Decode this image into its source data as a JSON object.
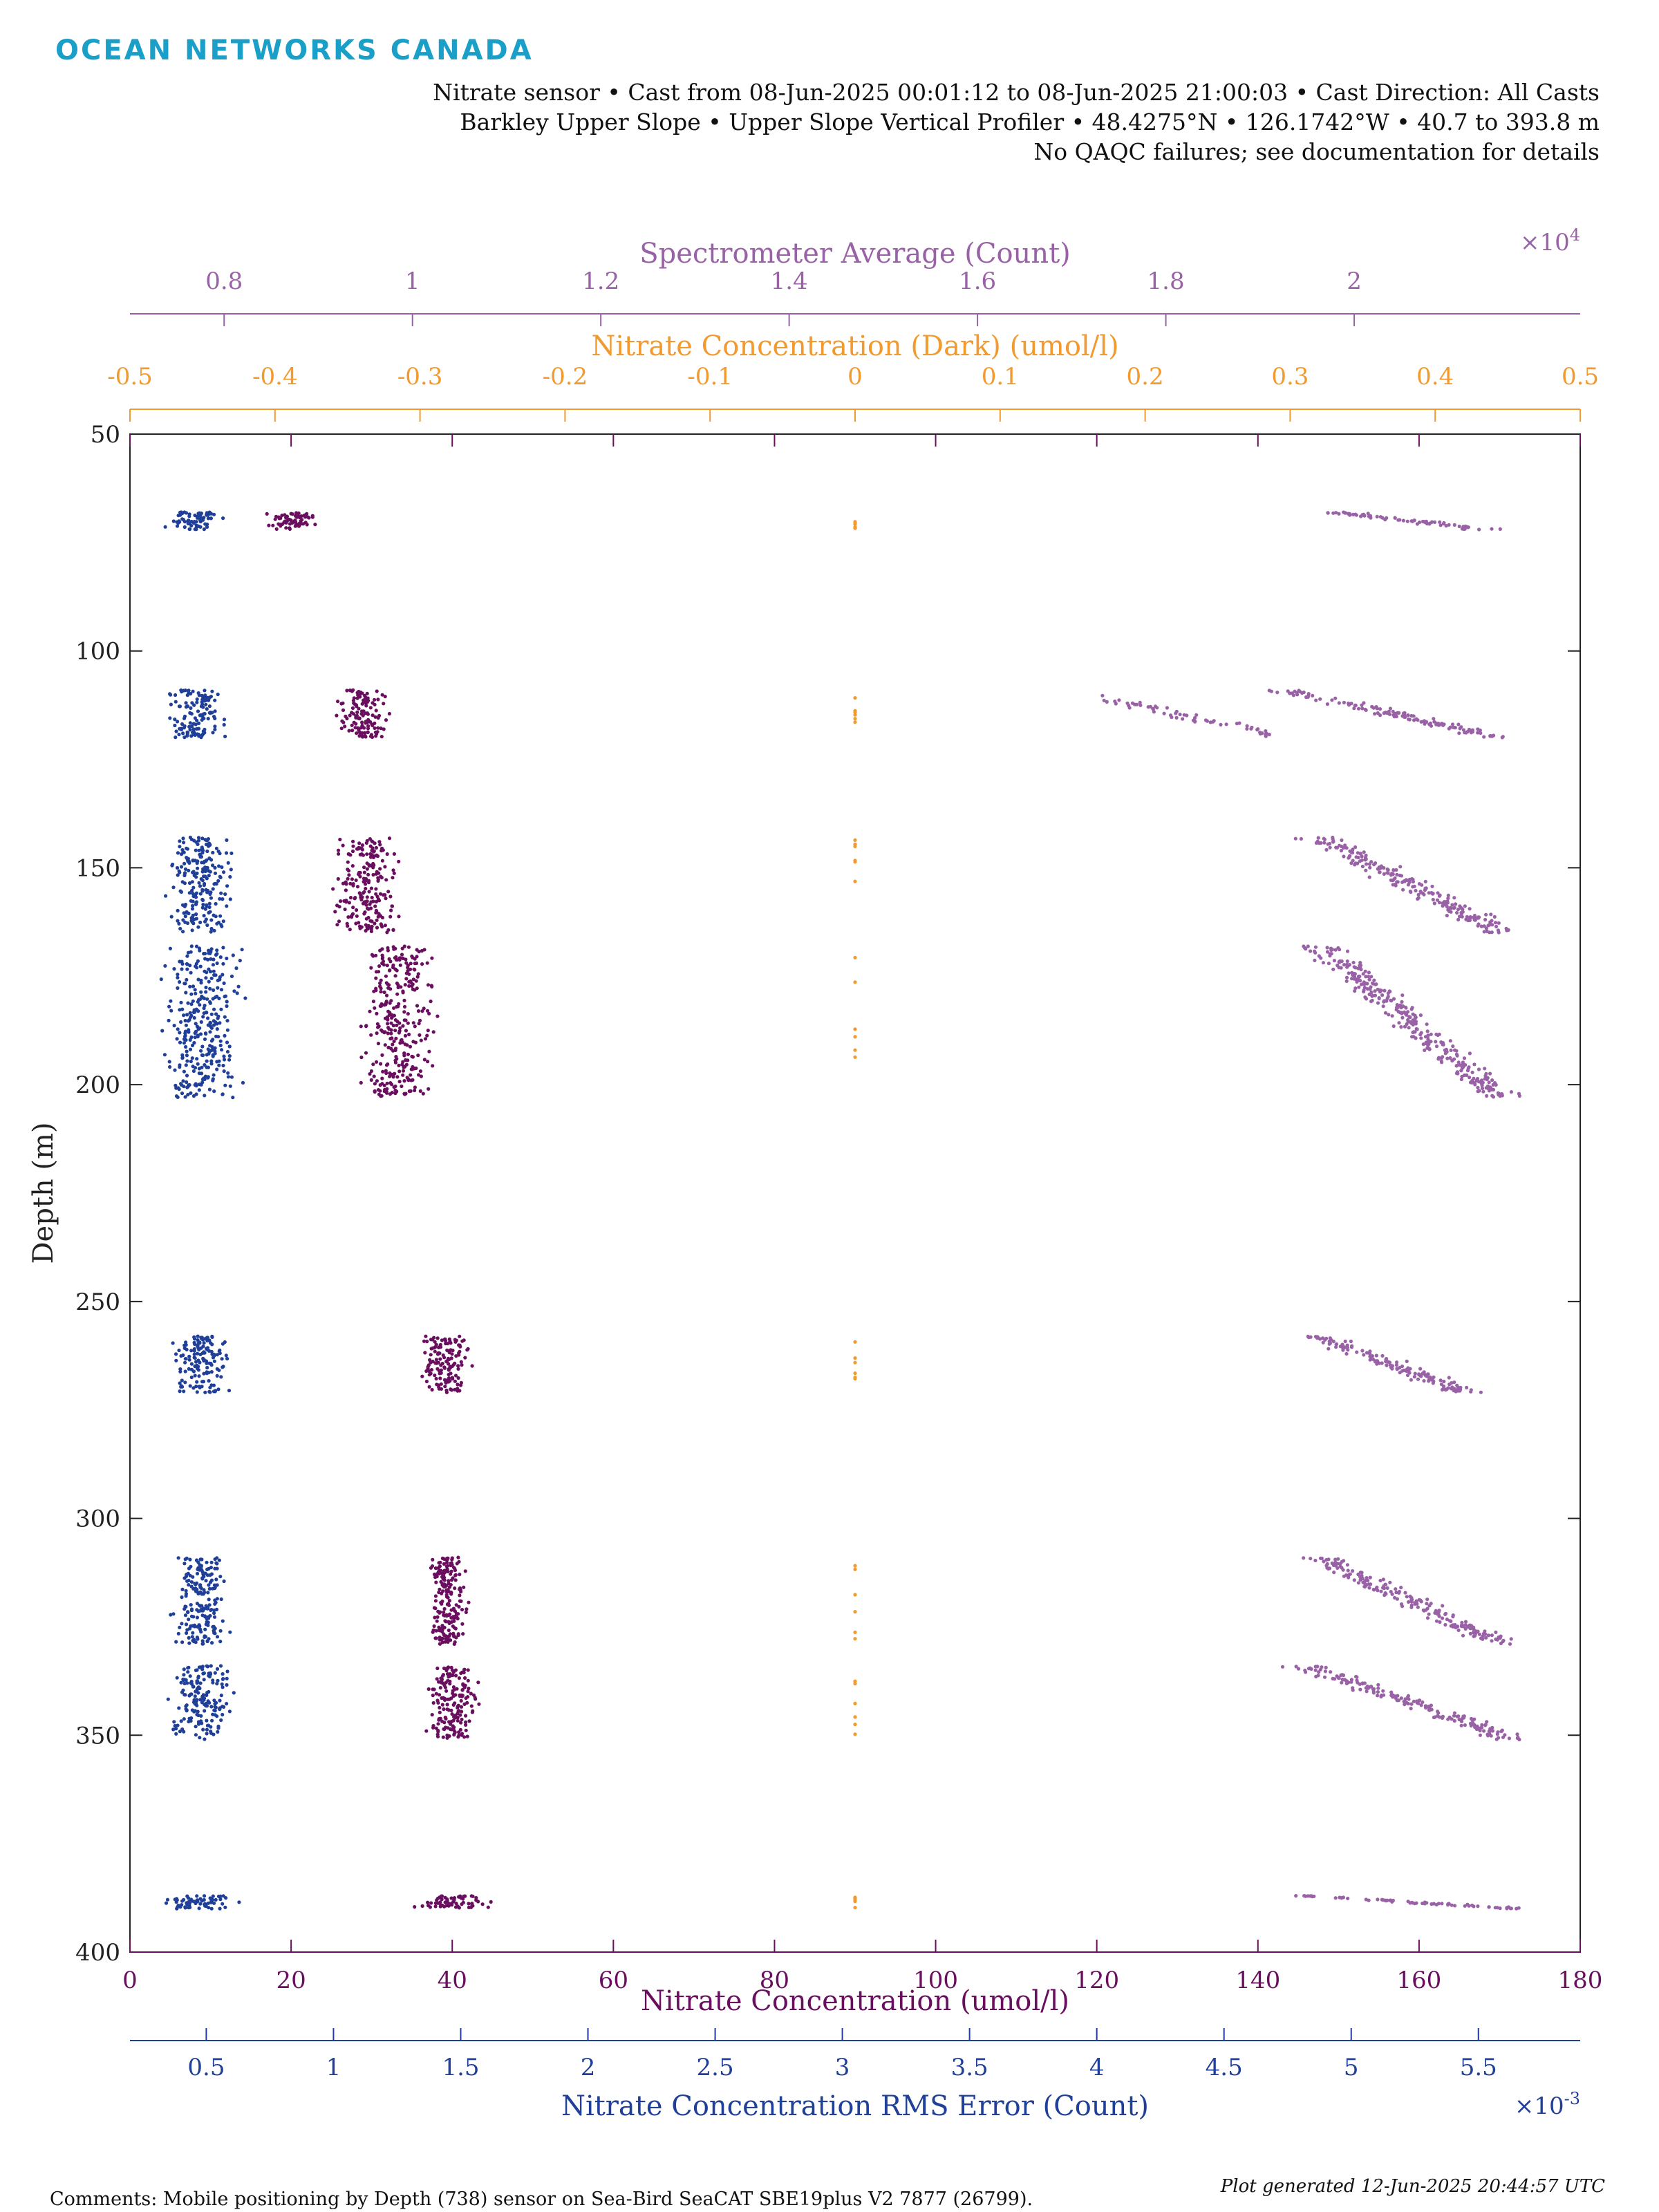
{
  "header": {
    "logo": "OCEAN NETWORKS CANADA",
    "line1": "Nitrate sensor • Cast from 08-Jun-2025 00:01:12 to 08-Jun-2025 21:00:03 • Cast Direction: All Casts",
    "line2": "Barkley Upper Slope • Upper Slope Vertical Profiler • 48.4275°N • 126.1742°W • 40.7 to 393.8 m",
    "line3": "No QAQC failures; see documentation for details"
  },
  "footer": {
    "comments": "Comments: Mobile positioning by Depth (738) sensor on Sea-Bird SeaCAT SBE19plus V2 7877 (26799).",
    "generated": "Plot generated 12-Jun-2025 20:44:57 UTC"
  },
  "colors": {
    "nitrate": "#6a0f5f",
    "rms": "#1f3f98",
    "dark": "#f29a2e",
    "spectrometer": "#9a62a6",
    "axis": "#222222"
  },
  "chart_data": {
    "type": "scatter",
    "ylabel": "Depth (m)",
    "ylim": [
      50,
      400
    ],
    "yticks": [
      50,
      100,
      150,
      200,
      250,
      300,
      350,
      400
    ],
    "y_reversed": true,
    "depth_bands": [
      [
        68,
        72
      ],
      [
        109,
        120
      ],
      [
        143,
        165
      ],
      [
        168,
        203
      ],
      [
        258,
        271
      ],
      [
        309,
        329
      ],
      [
        334,
        351
      ],
      [
        387,
        390
      ]
    ],
    "axes": [
      {
        "name": "Nitrate Concentration (umol/l)",
        "position": "bottom",
        "color": "#6a0f5f",
        "xlim": [
          0,
          180
        ],
        "ticks": [
          0,
          20,
          40,
          60,
          80,
          100,
          120,
          140,
          160,
          180
        ],
        "tick_labels": [
          "0",
          "20",
          "40",
          "60",
          "80",
          "100",
          "120",
          "140",
          "160",
          "180"
        ],
        "centers": [
          20,
          29,
          29.5,
          33,
          39,
          39.5,
          40,
          40
        ],
        "spreads": [
          4,
          4,
          5,
          6,
          4,
          3,
          4.5,
          6
        ]
      },
      {
        "name": "Nitrate Concentration RMS Error (Count)",
        "position": "bottom-secondary",
        "color": "#1f3f98",
        "scale_label": "×10",
        "scale_exp": "-3",
        "xlim": [
          0.2,
          5.9
        ],
        "ticks": [
          0.5,
          1,
          1.5,
          2,
          2.5,
          3,
          3.5,
          4,
          4.5,
          5,
          5.5
        ],
        "tick_labels": [
          "0.5",
          "1",
          "1.5",
          "2",
          "2.5",
          "3",
          "3.5",
          "4",
          "4.5",
          "5",
          "5.5"
        ],
        "centers": [
          0.46,
          0.46,
          0.48,
          0.48,
          0.48,
          0.48,
          0.48,
          0.46
        ],
        "spreads": [
          0.14,
          0.14,
          0.16,
          0.2,
          0.14,
          0.14,
          0.16,
          0.2
        ]
      },
      {
        "name": "Nitrate Concentration (Dark) (umol/l)",
        "position": "top-secondary",
        "color": "#f29a2e",
        "xlim": [
          -0.5,
          0.5
        ],
        "ticks": [
          -0.5,
          -0.4,
          -0.3,
          -0.2,
          -0.1,
          0,
          0.1,
          0.2,
          0.3,
          0.4,
          0.5
        ],
        "tick_labels": [
          "-0.5",
          "-0.4",
          "-0.3",
          "-0.2",
          "-0.1",
          "0",
          "0.1",
          "0.2",
          "0.3",
          "0.4",
          "0.5"
        ],
        "values": [
          0
        ]
      },
      {
        "name": "Spectrometer Average (Count)",
        "position": "top",
        "color": "#9a62a6",
        "scale_label": "×10",
        "scale_exp": "4",
        "xlim": [
          0.7,
          2.24
        ],
        "ticks": [
          0.8,
          1,
          1.2,
          1.4,
          1.6,
          1.8,
          2
        ],
        "tick_labels": [
          "0.8",
          "1",
          "1.2",
          "1.4",
          "1.6",
          "1.8",
          "2"
        ],
        "centers": [
          2.06,
          2.04,
          2.06,
          2.06,
          2.04,
          2.06,
          2.06,
          2.06
        ],
        "spreads": [
          0.1,
          0.14,
          0.12,
          0.12,
          0.1,
          0.12,
          0.14,
          0.14
        ],
        "extra_cluster": {
          "x": [
            1.73,
            1.91
          ],
          "depth": [
            111,
            119
          ]
        }
      }
    ]
  }
}
